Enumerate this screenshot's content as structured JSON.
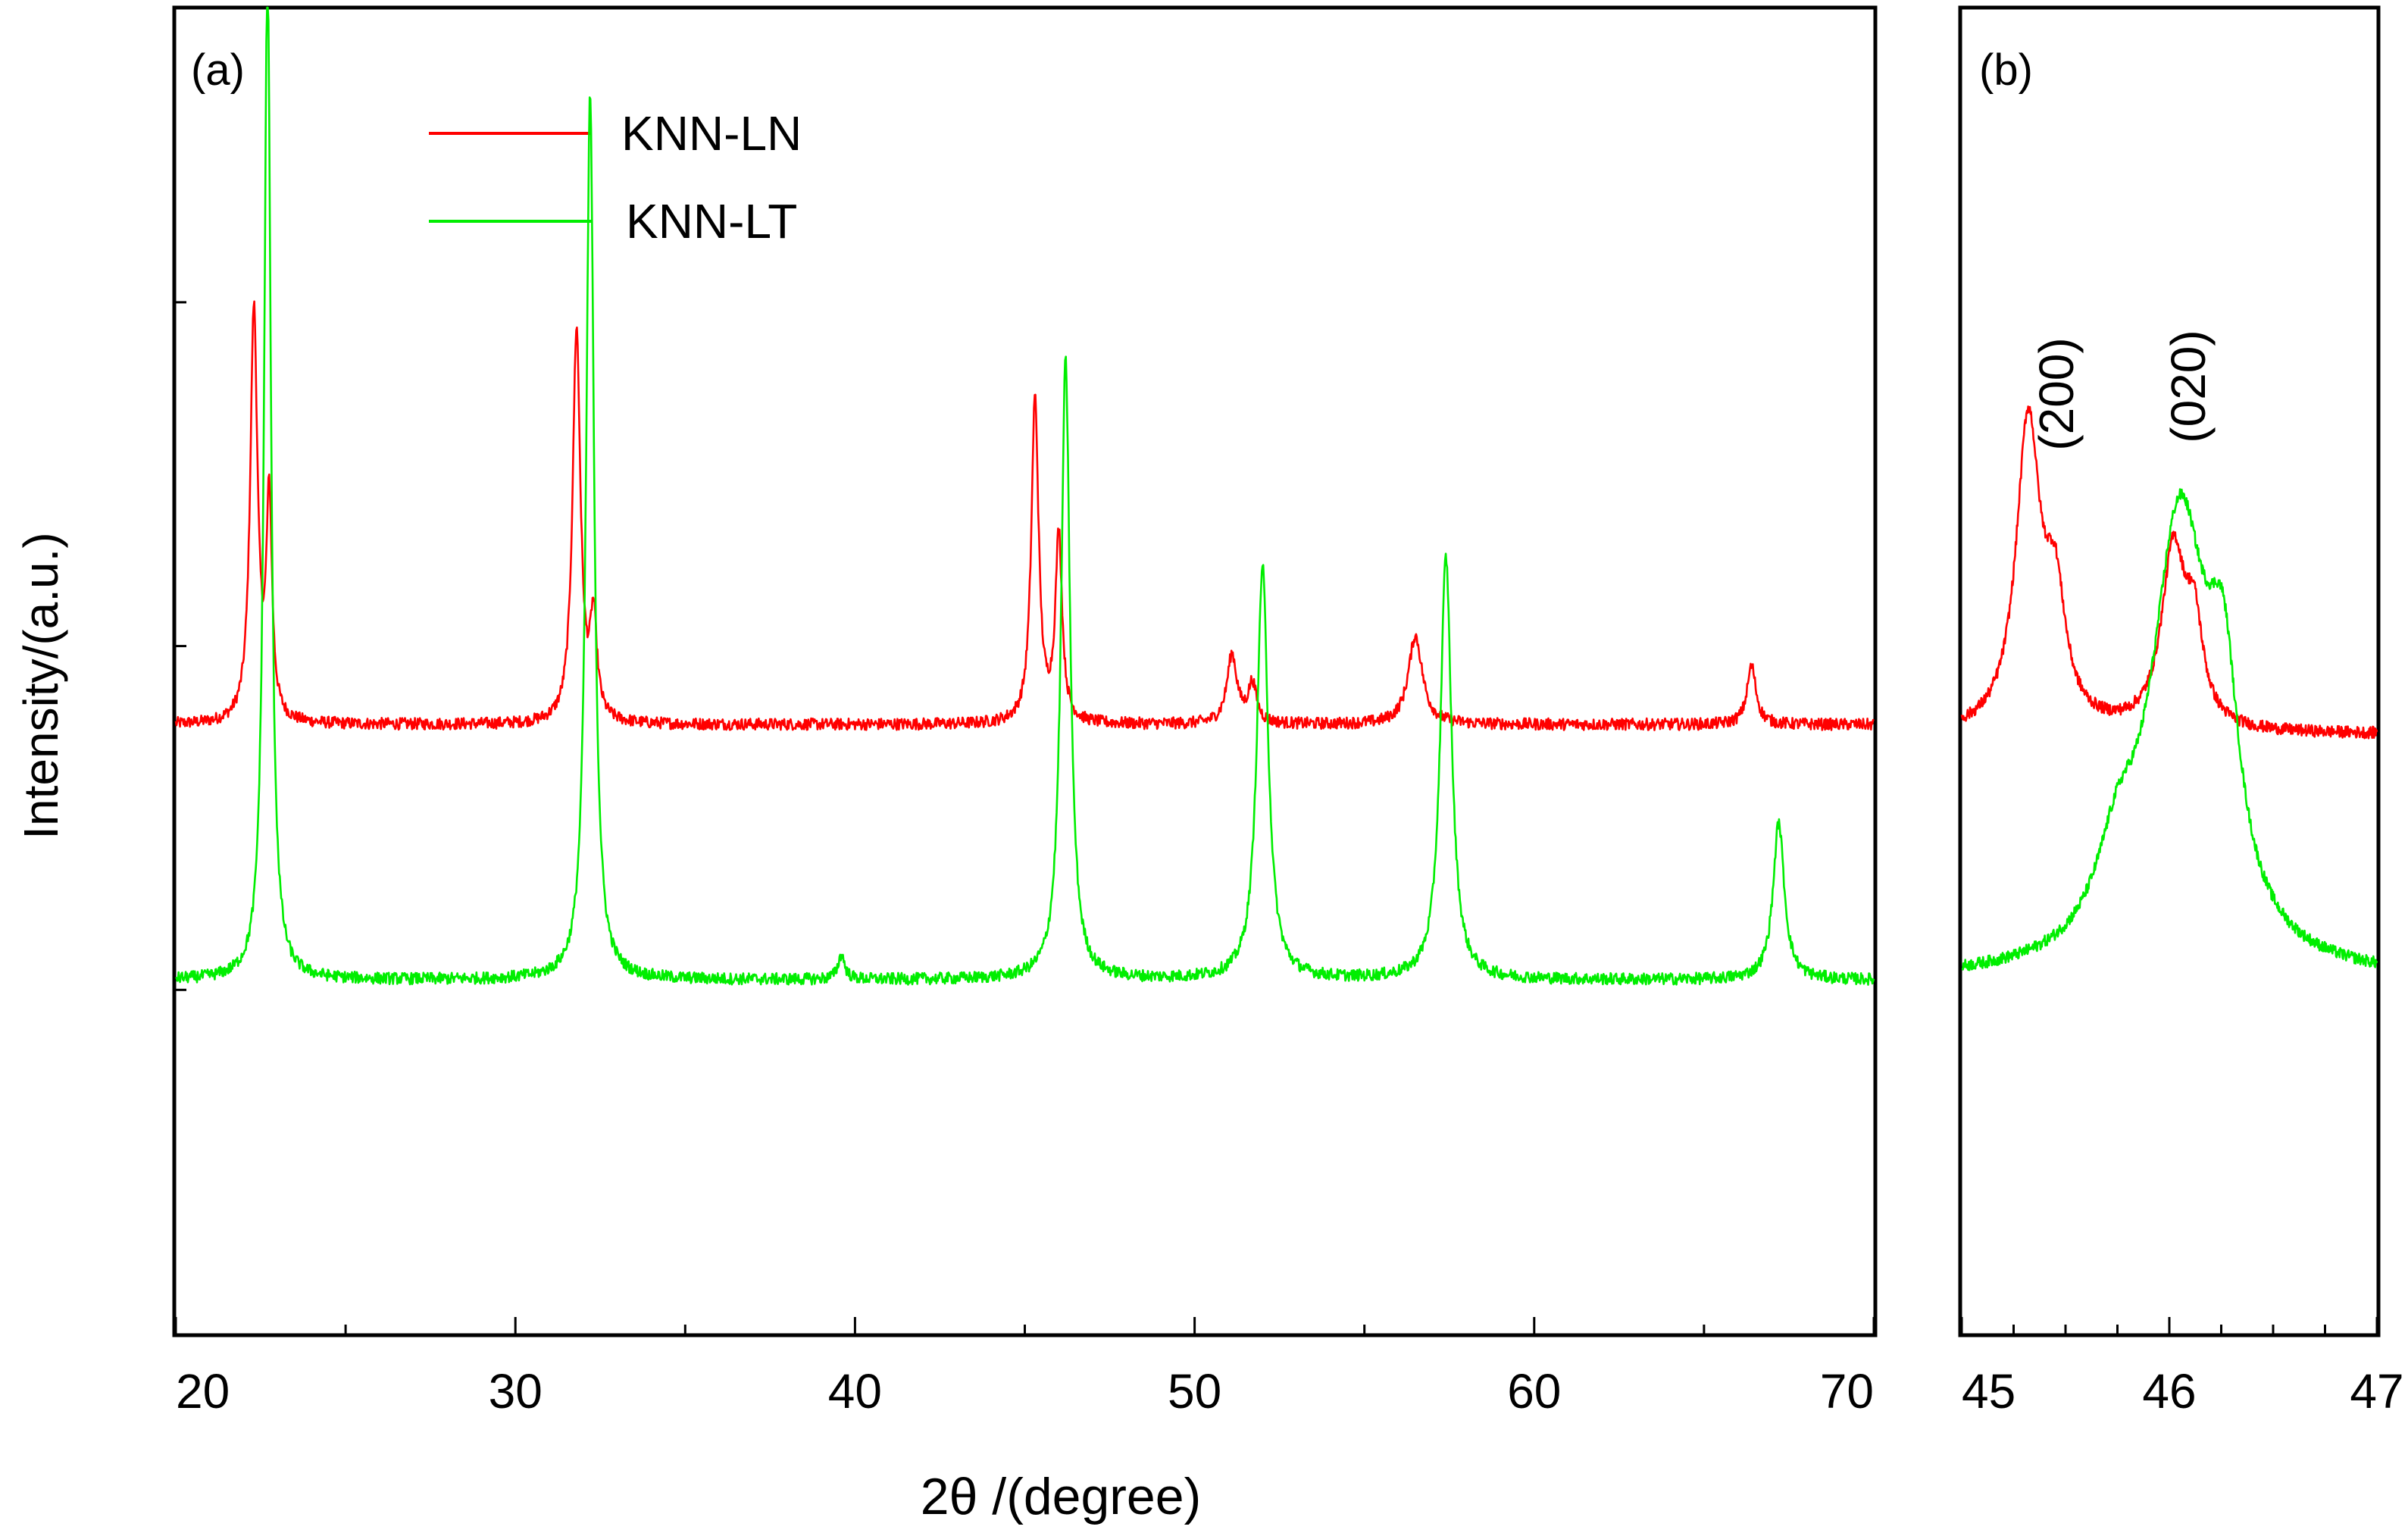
{
  "chart_data": [
    {
      "type": "line",
      "panel_label": "(a)",
      "xlabel": "2θ /(degree)",
      "ylabel": "Intensity/(a.u.)",
      "xlim": [
        20,
        70
      ],
      "ylim": [
        0,
        1.35
      ],
      "y_tick_labels": false,
      "x_ticks": [
        "20",
        "30",
        "40",
        "50",
        "60",
        "70"
      ],
      "legend": {
        "placement": "top-left",
        "entries": [
          "KNN-LN",
          "KNN-LT"
        ]
      },
      "series": [
        {
          "name": "KNN-LN",
          "color": "#ff0000",
          "baseline": 0.62,
          "noise": 0.006,
          "peaks": [
            {
              "x": 22.3,
              "height": 0.42,
              "width": 0.13
            },
            {
              "x": 22.75,
              "height": 0.22,
              "width": 0.1
            },
            {
              "x": 31.8,
              "height": 0.4,
              "width": 0.14
            },
            {
              "x": 32.3,
              "height": 0.1,
              "width": 0.12
            },
            {
              "x": 45.3,
              "height": 0.33,
              "width": 0.13
            },
            {
              "x": 46.0,
              "height": 0.19,
              "width": 0.12
            },
            {
              "x": 51.1,
              "height": 0.07,
              "width": 0.18
            },
            {
              "x": 51.7,
              "height": 0.04,
              "width": 0.15
            },
            {
              "x": 56.5,
              "height": 0.09,
              "width": 0.25
            },
            {
              "x": 66.4,
              "height": 0.06,
              "width": 0.16
            }
          ]
        },
        {
          "name": "KNN-LT",
          "color": "#00ee00",
          "baseline": 0.36,
          "noise": 0.006,
          "peaks": [
            {
              "x": 22.7,
              "height": 1.03,
              "width": 0.12
            },
            {
              "x": 32.2,
              "height": 0.9,
              "width": 0.14
            },
            {
              "x": 39.6,
              "height": 0.025,
              "width": 0.12
            },
            {
              "x": 46.2,
              "height": 0.63,
              "width": 0.16
            },
            {
              "x": 52.0,
              "height": 0.42,
              "width": 0.2
            },
            {
              "x": 57.4,
              "height": 0.43,
              "width": 0.2
            },
            {
              "x": 67.2,
              "height": 0.16,
              "width": 0.2
            }
          ]
        }
      ]
    },
    {
      "type": "line",
      "panel_label": "(b)",
      "xlim": [
        45,
        47
      ],
      "ylim": [
        0,
        1.35
      ],
      "x_ticks": [
        "45",
        "46",
        "47"
      ],
      "annotations": [
        {
          "text": "(200)",
          "x": 45.55
        },
        {
          "text": "(020)",
          "x": 46.15
        }
      ],
      "series": [
        {
          "name": "KNN-LN",
          "color": "#ff0000",
          "baseline": 0.61,
          "noise": 0.006,
          "peaks": [
            {
              "x": 45.32,
              "height": 0.31,
              "width": 0.07
            },
            {
              "x": 45.45,
              "height": 0.12,
              "width": 0.06
            },
            {
              "x": 46.02,
              "height": 0.18,
              "width": 0.07
            },
            {
              "x": 46.12,
              "height": 0.09,
              "width": 0.05
            }
          ]
        },
        {
          "name": "KNN-LT",
          "color": "#00ee00",
          "baseline": 0.36,
          "noise": 0.006,
          "peaks": [
            {
              "x": 46.05,
              "height": 0.45,
              "width": 0.17
            },
            {
              "x": 46.26,
              "height": 0.21,
              "width": 0.09
            },
            {
              "x": 45.75,
              "height": 0.08,
              "width": 0.12
            }
          ]
        }
      ]
    }
  ]
}
